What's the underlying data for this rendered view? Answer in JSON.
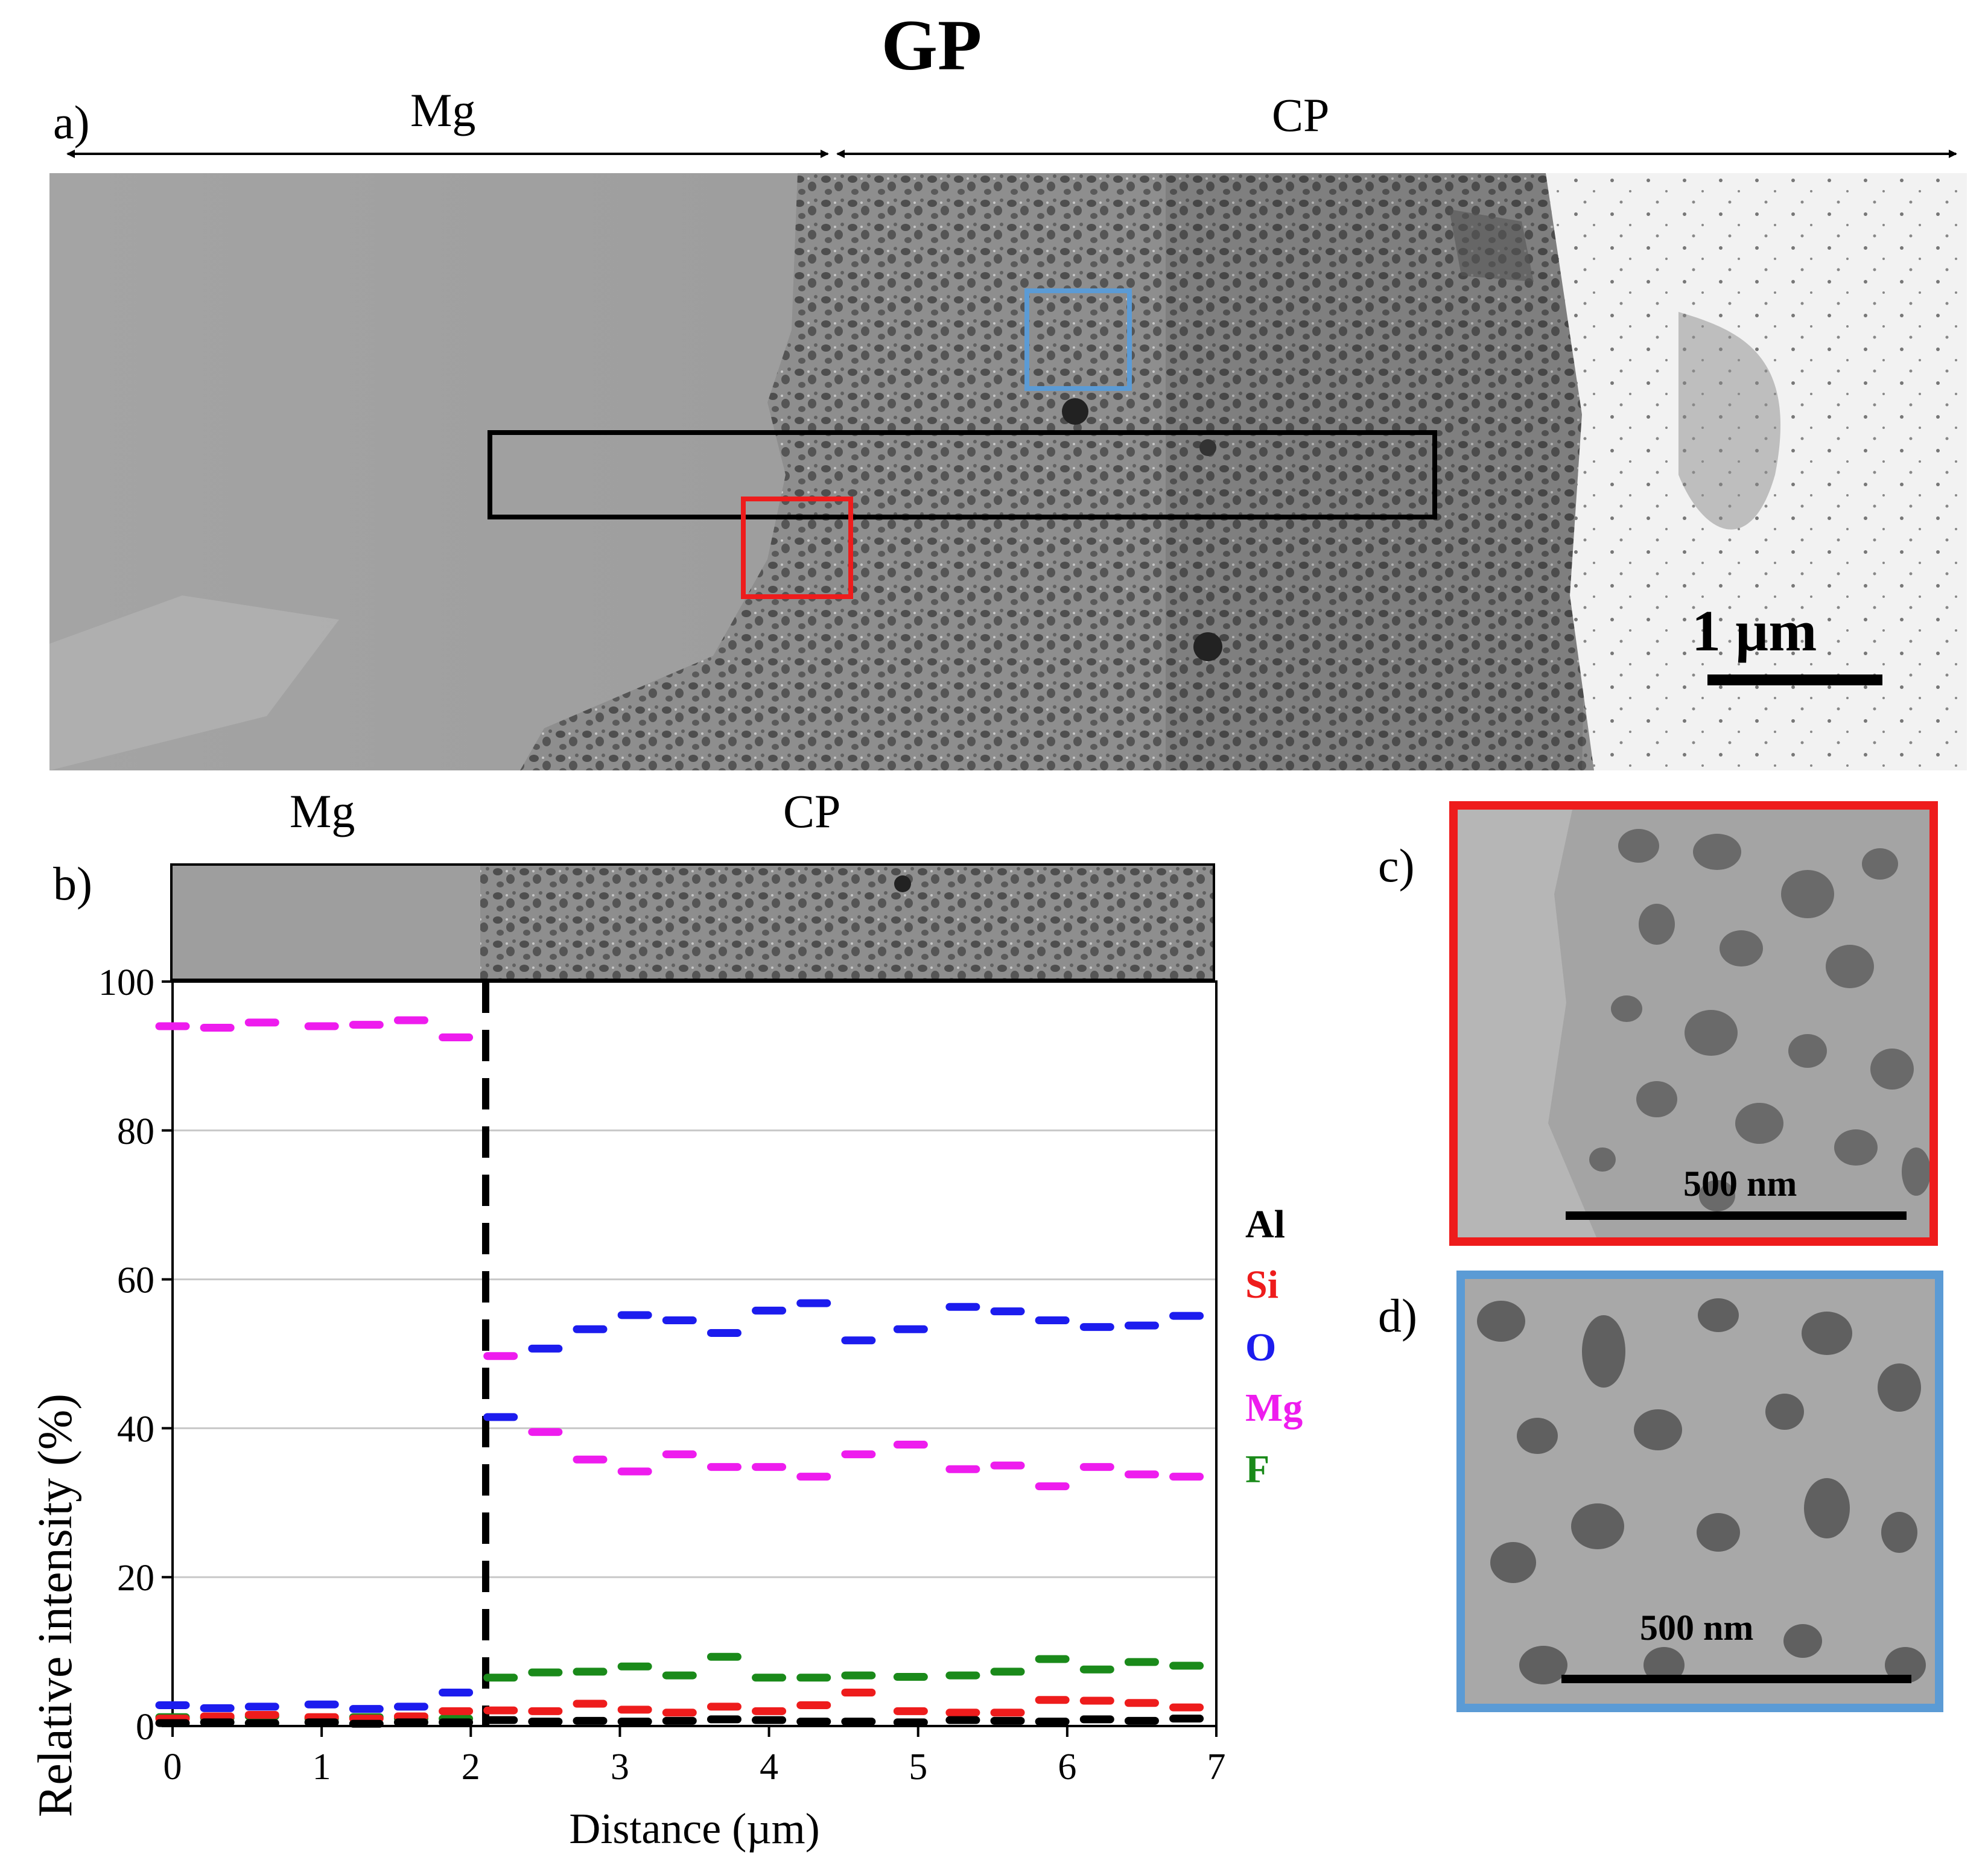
{
  "figure_title": "GP",
  "panel_a": {
    "label": "a)",
    "region_left": "Mg",
    "region_right": "CP",
    "scale_bar": "1 µm"
  },
  "panel_b": {
    "label": "b)",
    "region_left": "Mg",
    "region_right": "CP"
  },
  "panel_c": {
    "label": "c)",
    "scale_bar": "500 nm",
    "frame_color": "#ee1c1c"
  },
  "panel_d": {
    "label": "d)",
    "scale_bar": "500 nm",
    "frame_color": "#5b9bd5"
  },
  "colors": {
    "Al": "#000000",
    "Si": "#ee1c1c",
    "O": "#1c1cee",
    "Mg": "#ee1cee",
    "F": "#1a8a1a",
    "dashed_line": "#000000"
  },
  "chart_data": {
    "type": "line",
    "title": "",
    "xlabel": "Distance (µm)",
    "ylabel": "Relative intensity (%)",
    "xlim": [
      0,
      7
    ],
    "ylim": [
      0,
      100
    ],
    "xticks": [
      "0",
      "1",
      "2",
      "3",
      "4",
      "5",
      "6",
      "7"
    ],
    "yticks": [
      "0",
      "20",
      "40",
      "60",
      "80",
      "100"
    ],
    "grid": true,
    "interface_x": 2.1,
    "legend": [
      "Al",
      "Si",
      "O",
      "Mg",
      "F"
    ],
    "x": [
      0,
      0.3,
      0.6,
      1.0,
      1.3,
      1.6,
      1.9,
      2.2,
      2.5,
      2.8,
      3.1,
      3.4,
      3.7,
      4.0,
      4.3,
      4.6,
      4.95,
      5.3,
      5.6,
      5.9,
      6.2,
      6.5,
      6.8
    ],
    "series": [
      {
        "name": "Mg",
        "values": [
          94,
          93.8,
          94.5,
          94,
          94.2,
          94.8,
          92.5,
          49.7,
          39.5,
          35.8,
          34.2,
          36.5,
          34.8,
          34.8,
          33.5,
          36.5,
          37.8,
          34.5,
          35,
          32.2,
          34.8,
          33.8,
          33.5
        ]
      },
      {
        "name": "O",
        "values": [
          2.8,
          2.4,
          2.6,
          2.9,
          2.3,
          2.6,
          4.5,
          41.5,
          50.7,
          53.3,
          55.2,
          54.5,
          52.8,
          55.8,
          56.8,
          51.8,
          53.3,
          56.3,
          55.7,
          54.5,
          53.6,
          53.8,
          55.1
        ]
      },
      {
        "name": "F",
        "values": [
          1.2,
          1.1,
          1.3,
          1.0,
          1.2,
          1.0,
          1.0,
          6.5,
          7.2,
          7.3,
          8.0,
          6.8,
          9.3,
          6.5,
          6.5,
          6.8,
          6.6,
          6.8,
          7.3,
          9.0,
          7.6,
          8.6,
          8.1
        ]
      },
      {
        "name": "Si",
        "values": [
          1.0,
          1.3,
          1.5,
          1.2,
          1.0,
          1.3,
          2.0,
          2.1,
          2.0,
          3.0,
          2.2,
          1.8,
          2.6,
          2.0,
          2.8,
          4.5,
          2.0,
          1.8,
          1.8,
          3.5,
          3.4,
          3.1,
          2.5
        ]
      },
      {
        "name": "Al",
        "values": [
          0.4,
          0.5,
          0.4,
          0.5,
          0.3,
          0.5,
          0.5,
          0.8,
          0.6,
          0.7,
          0.6,
          0.7,
          0.9,
          0.8,
          0.6,
          0.6,
          0.5,
          0.8,
          0.7,
          0.6,
          0.9,
          0.7,
          1.0
        ]
      }
    ]
  }
}
